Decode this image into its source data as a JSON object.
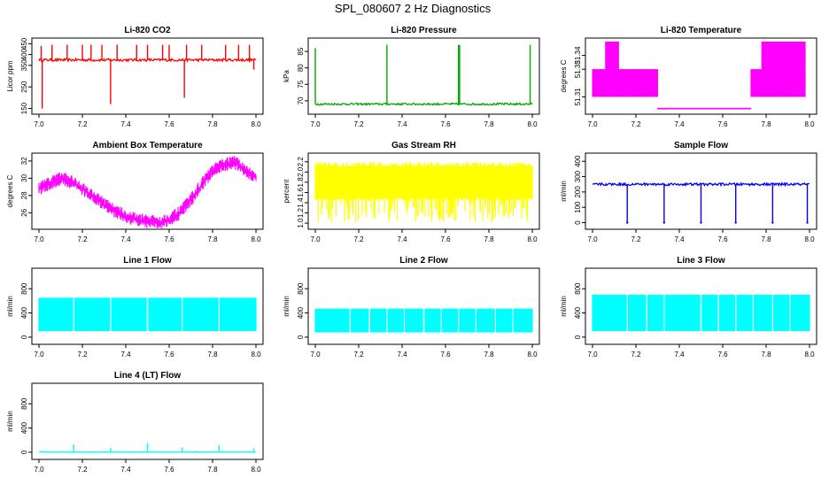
{
  "figure": {
    "title": "SPL_080607  2 Hz Diagnostics"
  },
  "chart_data": [
    {
      "type": "line",
      "title": "Li-820 CO2",
      "ylabel": "Licor ppm",
      "color": "#ff0000",
      "xlim": [
        7.0,
        8.0
      ],
      "ylim": [
        140,
        460
      ],
      "x_ticks": [
        "7.0",
        "7.2",
        "7.4",
        "7.6",
        "7.8",
        "8.0"
      ],
      "y_ticks": [
        150,
        250,
        350,
        400,
        450
      ],
      "baseline": 375,
      "noise": 6,
      "spikes": [
        {
          "x": 7.01,
          "y": 440
        },
        {
          "x": 7.015,
          "y": 150
        },
        {
          "x": 7.06,
          "y": 445
        },
        {
          "x": 7.13,
          "y": 445
        },
        {
          "x": 7.2,
          "y": 445
        },
        {
          "x": 7.24,
          "y": 445
        },
        {
          "x": 7.29,
          "y": 445
        },
        {
          "x": 7.33,
          "y": 170
        },
        {
          "x": 7.36,
          "y": 445
        },
        {
          "x": 7.45,
          "y": 445
        },
        {
          "x": 7.5,
          "y": 445
        },
        {
          "x": 7.57,
          "y": 445
        },
        {
          "x": 7.6,
          "y": 445
        },
        {
          "x": 7.67,
          "y": 200
        },
        {
          "x": 7.68,
          "y": 445
        },
        {
          "x": 7.75,
          "y": 445
        },
        {
          "x": 7.86,
          "y": 445
        },
        {
          "x": 7.92,
          "y": 445
        },
        {
          "x": 7.97,
          "y": 445
        },
        {
          "x": 7.99,
          "y": 330
        }
      ]
    },
    {
      "type": "line",
      "title": "Li-820 Pressure",
      "ylabel": "kPa",
      "color": "#00aa00",
      "xlim": [
        7.0,
        8.0
      ],
      "ylim": [
        67,
        88
      ],
      "x_ticks": [
        "7.0",
        "7.2",
        "7.4",
        "7.6",
        "7.8",
        "8.0"
      ],
      "y_ticks": [
        70,
        75,
        80,
        85
      ],
      "baseline": 69,
      "noise": 0.3,
      "spikes": [
        {
          "x": 7.0,
          "y": 86
        },
        {
          "x": 7.33,
          "y": 87
        },
        {
          "x": 7.66,
          "y": 87
        },
        {
          "x": 7.665,
          "y": 87
        },
        {
          "x": 7.99,
          "y": 87
        }
      ]
    },
    {
      "type": "area",
      "title": "Li-820 Temperature",
      "ylabel": "degrees C",
      "color": "#ff00ff",
      "xlim": [
        7.0,
        8.0
      ],
      "ylim": [
        51.3,
        51.35
      ],
      "x_ticks": [
        "7.0",
        "7.2",
        "7.4",
        "7.6",
        "7.8",
        "8.0"
      ],
      "y_ticks": [
        "51.31",
        "51.33",
        "51.34"
      ],
      "segments": [
        {
          "x0": 7.0,
          "x1": 7.3,
          "low": 51.31,
          "high": 51.33
        },
        {
          "x0": 7.06,
          "x1": 7.12,
          "low": 51.31,
          "high": 51.35
        },
        {
          "x0": 7.3,
          "x1": 7.73,
          "low": 51.301,
          "high": 51.302
        },
        {
          "x0": 7.73,
          "x1": 7.98,
          "low": 51.31,
          "high": 51.33
        },
        {
          "x0": 7.78,
          "x1": 7.98,
          "low": 51.33,
          "high": 51.35
        }
      ]
    },
    {
      "type": "line",
      "title": "Ambient Box Temperature",
      "ylabel": "degrees C",
      "color": "#ff00ff",
      "xlim": [
        7.0,
        8.0
      ],
      "ylim": [
        24.5,
        32.5
      ],
      "x_ticks": [
        "7.0",
        "7.2",
        "7.4",
        "7.6",
        "7.8",
        "8.0"
      ],
      "y_ticks": [
        26,
        28,
        30,
        32
      ],
      "points": [
        [
          7.0,
          28.8
        ],
        [
          7.05,
          29.4
        ],
        [
          7.1,
          30.0
        ],
        [
          7.15,
          29.6
        ],
        [
          7.2,
          28.8
        ],
        [
          7.25,
          27.9
        ],
        [
          7.3,
          27.0
        ],
        [
          7.35,
          26.2
        ],
        [
          7.4,
          25.6
        ],
        [
          7.45,
          25.2
        ],
        [
          7.5,
          25.0
        ],
        [
          7.55,
          24.9
        ],
        [
          7.6,
          25.2
        ],
        [
          7.65,
          26.0
        ],
        [
          7.7,
          27.5
        ],
        [
          7.75,
          29.3
        ],
        [
          7.8,
          30.8
        ],
        [
          7.85,
          31.6
        ],
        [
          7.9,
          31.8
        ],
        [
          7.95,
          31.0
        ],
        [
          8.0,
          30.0
        ]
      ],
      "noise": 0.8
    },
    {
      "type": "area",
      "title": "Gas Stream RH",
      "ylabel": "percent",
      "color": "#ffff00",
      "xlim": [
        7.0,
        8.0
      ],
      "ylim": [
        0.95,
        2.3
      ],
      "x_ticks": [
        "7.0",
        "7.2",
        "7.4",
        "7.6",
        "7.8",
        "8.0"
      ],
      "y_ticks": [
        "1.0",
        "1.2",
        "1.4",
        "1.6",
        "1.8",
        "2.0",
        "2.2"
      ],
      "band": {
        "low": 1.0,
        "high": 2.2,
        "dense_low": 1.45,
        "dense_high": 2.12
      }
    },
    {
      "type": "line",
      "title": "Sample Flow",
      "ylabel": "ml/min",
      "color": "#0000ff",
      "xlim": [
        7.0,
        8.0
      ],
      "ylim": [
        -20,
        430
      ],
      "x_ticks": [
        "7.0",
        "7.2",
        "7.4",
        "7.6",
        "7.8",
        "8.0"
      ],
      "y_ticks": [
        0,
        100,
        200,
        300,
        400
      ],
      "baseline": 250,
      "noise": 8,
      "dips": [
        7.16,
        7.33,
        7.5,
        7.66,
        7.83,
        7.99
      ],
      "dip_value": 0
    },
    {
      "type": "area",
      "title": "Line 1 Flow",
      "ylabel": "ml/min",
      "color": "#00ffff",
      "xlim": [
        7.0,
        8.0
      ],
      "ylim": [
        -60,
        1080
      ],
      "x_ticks": [
        "7.0",
        "7.2",
        "7.4",
        "7.6",
        "7.8",
        "8.0"
      ],
      "y_ticks": [
        0,
        400,
        800
      ],
      "band": {
        "low": 100,
        "high": 650
      },
      "gaps": [
        7.16,
        7.33,
        7.5,
        7.66,
        7.83
      ]
    },
    {
      "type": "area",
      "title": "Line 2 Flow",
      "ylabel": "ml/min",
      "color": "#00ffff",
      "xlim": [
        7.0,
        8.0
      ],
      "ylim": [
        -60,
        1080
      ],
      "x_ticks": [
        "7.0",
        "7.2",
        "7.4",
        "7.6",
        "7.8",
        "8.0"
      ],
      "y_ticks": [
        0,
        400,
        800
      ],
      "band": {
        "low": 80,
        "high": 470
      },
      "gaps": [
        7.16,
        7.25,
        7.33,
        7.41,
        7.5,
        7.58,
        7.66,
        7.74,
        7.83,
        7.91
      ]
    },
    {
      "type": "area",
      "title": "Line 3 Flow",
      "ylabel": "ml/min",
      "color": "#00ffff",
      "xlim": [
        7.0,
        8.0
      ],
      "ylim": [
        -60,
        1080
      ],
      "x_ticks": [
        "7.0",
        "7.2",
        "7.4",
        "7.6",
        "7.8",
        "8.0"
      ],
      "y_ticks": [
        0,
        400,
        800
      ],
      "band": {
        "low": 100,
        "high": 700
      },
      "gaps": [
        7.16,
        7.25,
        7.33,
        7.5,
        7.58,
        7.66,
        7.74,
        7.83,
        7.91
      ]
    },
    {
      "type": "line",
      "title": "Line 4 (LT) Flow",
      "ylabel": "ml/min",
      "color": "#00ffff",
      "xlim": [
        7.0,
        8.0
      ],
      "ylim": [
        -60,
        1080
      ],
      "x_ticks": [
        "7.0",
        "7.2",
        "7.4",
        "7.6",
        "7.8",
        "8.0"
      ],
      "y_ticks": [
        0,
        400,
        800
      ],
      "baseline": 5,
      "noise": 4,
      "spikes": [
        {
          "x": 7.16,
          "y": 130
        },
        {
          "x": 7.33,
          "y": 70
        },
        {
          "x": 7.5,
          "y": 150
        },
        {
          "x": 7.66,
          "y": 80
        },
        {
          "x": 7.83,
          "y": 120
        },
        {
          "x": 7.99,
          "y": 60
        }
      ]
    }
  ]
}
